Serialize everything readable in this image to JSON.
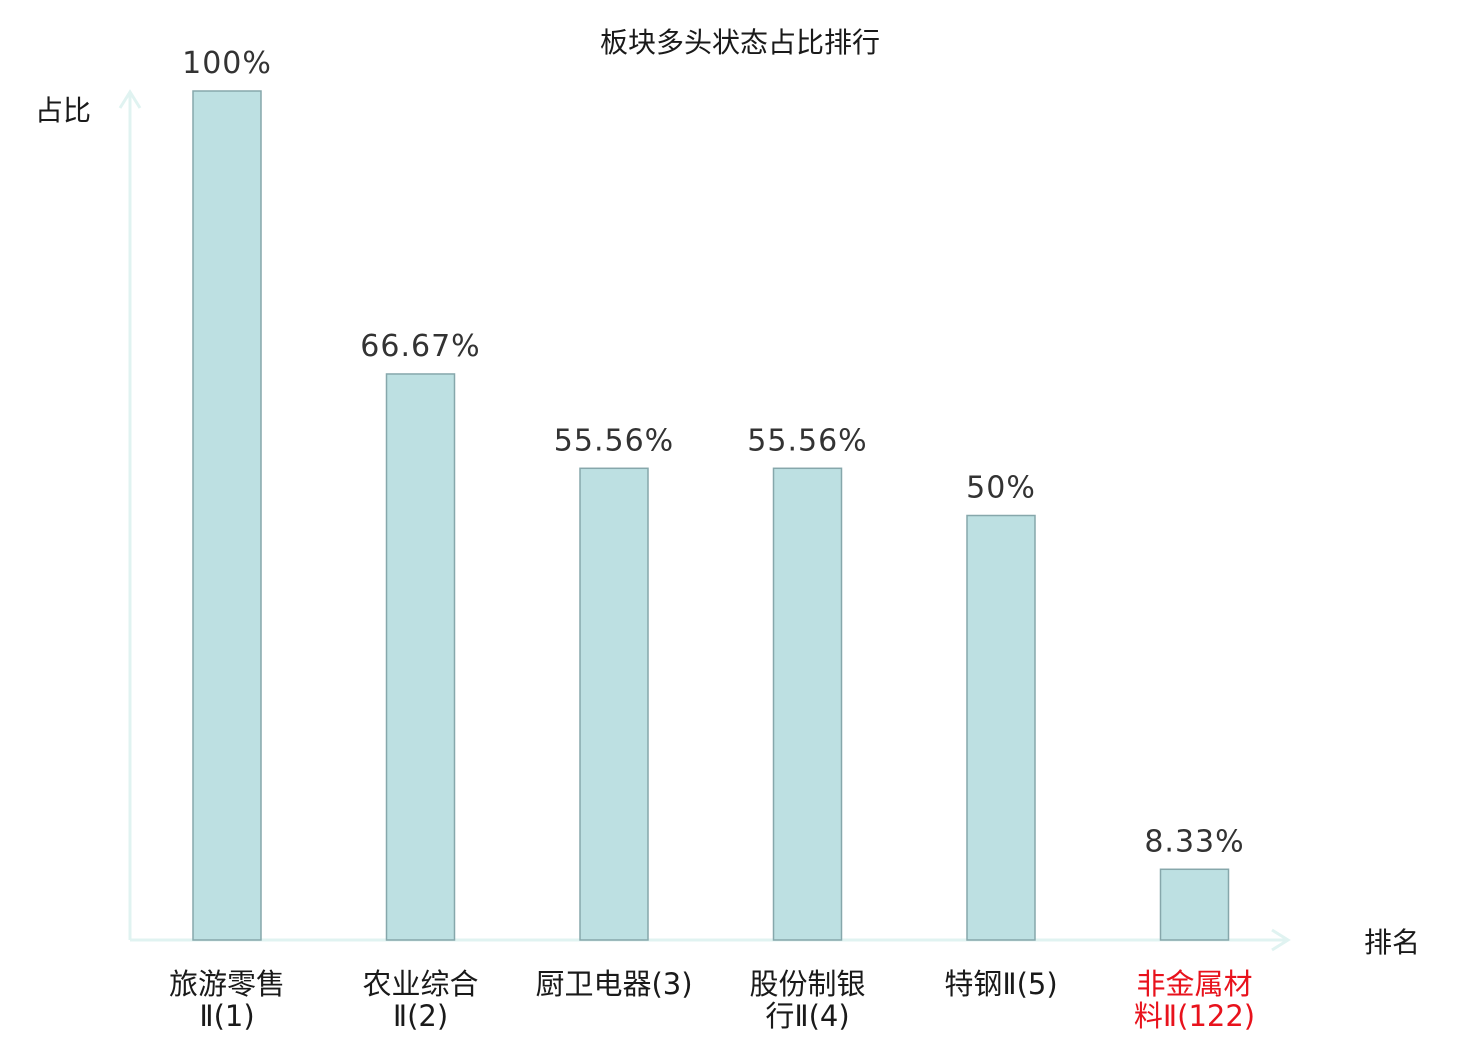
{
  "chart_data": {
    "type": "bar",
    "title": "板块多头状态占比排行",
    "ylabel": "占比",
    "xlabel": "排名",
    "ylim": [
      0,
      100
    ],
    "grid": false,
    "categories": [
      [
        "旅游零售",
        "Ⅱ(1)"
      ],
      [
        "农业综合",
        "Ⅱ(2)"
      ],
      [
        "厨卫电器(3)"
      ],
      [
        "股份制银",
        "行Ⅱ(4)"
      ],
      [
        "特钢Ⅱ(5)"
      ],
      [
        "非金属材",
        "料Ⅱ(122)"
      ]
    ],
    "values": [
      100,
      66.67,
      55.56,
      55.56,
      50,
      8.33
    ],
    "value_labels": [
      "100%",
      "66.67%",
      "55.56%",
      "55.56%",
      "50%",
      "8.33%"
    ],
    "highlight_index": 5
  },
  "colors": {
    "bar_fill": "#bde0e2",
    "bar_stroke": "#86a7ab",
    "axis": "#e0f3f1",
    "text": "#1a1a1a",
    "value_text": "#333333",
    "highlight": "#e8121c"
  }
}
